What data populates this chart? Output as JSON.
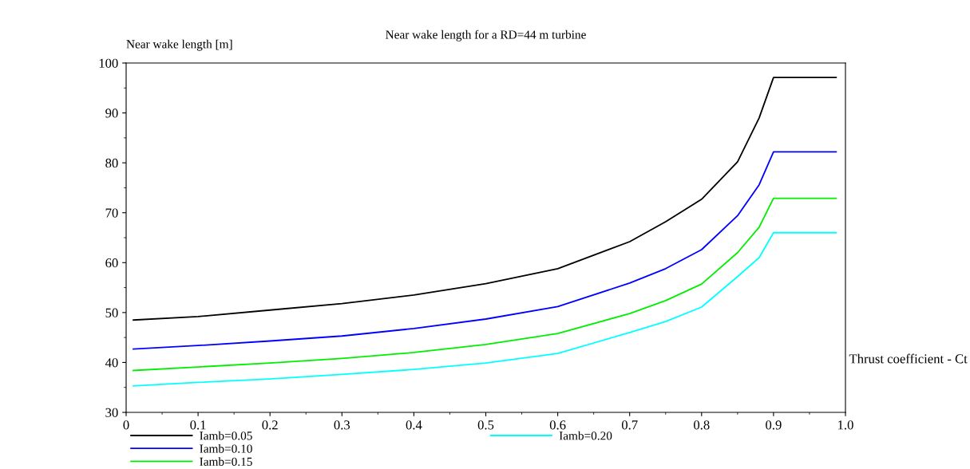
{
  "chart_data": {
    "type": "line",
    "title": "Near wake length for a RD=44 m turbine",
    "ylabel": "Near wake length [m]",
    "xlabel": "Thrust coefficient - Ct",
    "x": [
      0.01,
      0.1,
      0.2,
      0.3,
      0.4,
      0.5,
      0.6,
      0.7,
      0.75,
      0.8,
      0.85,
      0.88,
      0.9,
      0.987
    ],
    "series": [
      {
        "name": "Iamb=0.05",
        "color": "#000000",
        "values": [
          48.5,
          49.2,
          50.5,
          51.8,
          53.5,
          55.8,
          58.8,
          64.2,
          68.2,
          72.7,
          80.2,
          89.0,
          97.1,
          97.1
        ]
      },
      {
        "name": "Iamb=0.10",
        "color": "#0000ff",
        "values": [
          42.7,
          43.4,
          44.3,
          45.3,
          46.8,
          48.7,
          51.2,
          55.9,
          58.8,
          62.6,
          69.4,
          75.6,
          82.2,
          82.2
        ]
      },
      {
        "name": "Iamb=0.15",
        "color": "#00ee00",
        "values": [
          38.4,
          39.1,
          39.9,
          40.8,
          42.0,
          43.6,
          45.8,
          49.8,
          52.4,
          55.7,
          62.0,
          67.1,
          72.9,
          72.9
        ]
      },
      {
        "name": "Iamb=0.20",
        "color": "#00ffff",
        "values": [
          35.3,
          36.0,
          36.7,
          37.6,
          38.6,
          39.9,
          41.8,
          46.0,
          48.2,
          51.1,
          57.2,
          61.0,
          66.0,
          66.0
        ]
      }
    ],
    "xlim": [
      0,
      1.0
    ],
    "xticks": [
      {
        "value": 0,
        "label": "0"
      },
      0.1,
      0.2,
      0.3,
      0.4,
      0.5,
      0.6,
      0.7,
      0.8,
      0.9,
      {
        "value": 1.0,
        "label": "1.0"
      }
    ],
    "ylim": [
      30,
      100
    ],
    "yticks": [
      30,
      40,
      50,
      60,
      70,
      80,
      90,
      100
    ],
    "grid": false,
    "legend": "bottom",
    "marker": "none",
    "line_style": "solid"
  }
}
